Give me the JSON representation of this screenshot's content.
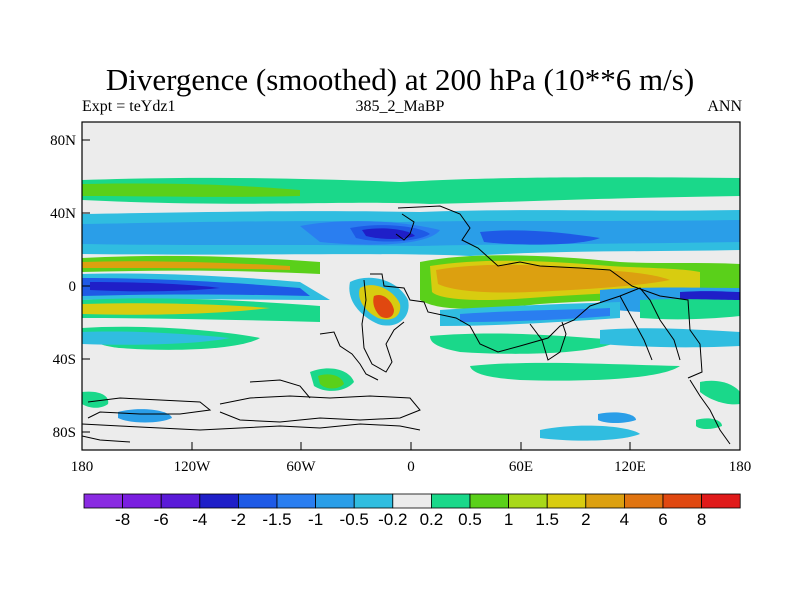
{
  "title": "Divergence (smoothed) at 200 hPa (10**6 m/s)",
  "subtitle_left": "Expt = teYdz1",
  "subtitle_center": "385_2_MaBP",
  "subtitle_right": "ANN",
  "axes": {
    "lat_labels": [
      "80N",
      "40N",
      "0",
      "40S",
      "80S"
    ],
    "lat_values": [
      80,
      40,
      0,
      -40,
      -80
    ],
    "lon_labels": [
      "180",
      "120W",
      "60W",
      "0",
      "60E",
      "120E",
      "180"
    ],
    "lon_values": [
      -180,
      -120,
      -60,
      0,
      60,
      120,
      180
    ],
    "lat_range": [
      -90,
      90
    ],
    "lon_range": [
      -180,
      180
    ]
  },
  "colorbar": {
    "colors": [
      "#8a2be2",
      "#7a1ee0",
      "#5a1ad8",
      "#1f1fc8",
      "#1e5ae6",
      "#2a7ef0",
      "#2a9ee8",
      "#30bde0",
      "#ececec",
      "#1ad88a",
      "#5ad01a",
      "#a8d81a",
      "#d8cc10",
      "#dca010",
      "#e07410",
      "#e04810",
      "#e01a1a"
    ],
    "labels": [
      "-8",
      "-6",
      "-4",
      "-2",
      "-1.5",
      "-1",
      "-0.5",
      "-0.2",
      "0.2",
      "0.5",
      "1",
      "1.5",
      "2",
      "4",
      "6",
      "8"
    ]
  }
}
